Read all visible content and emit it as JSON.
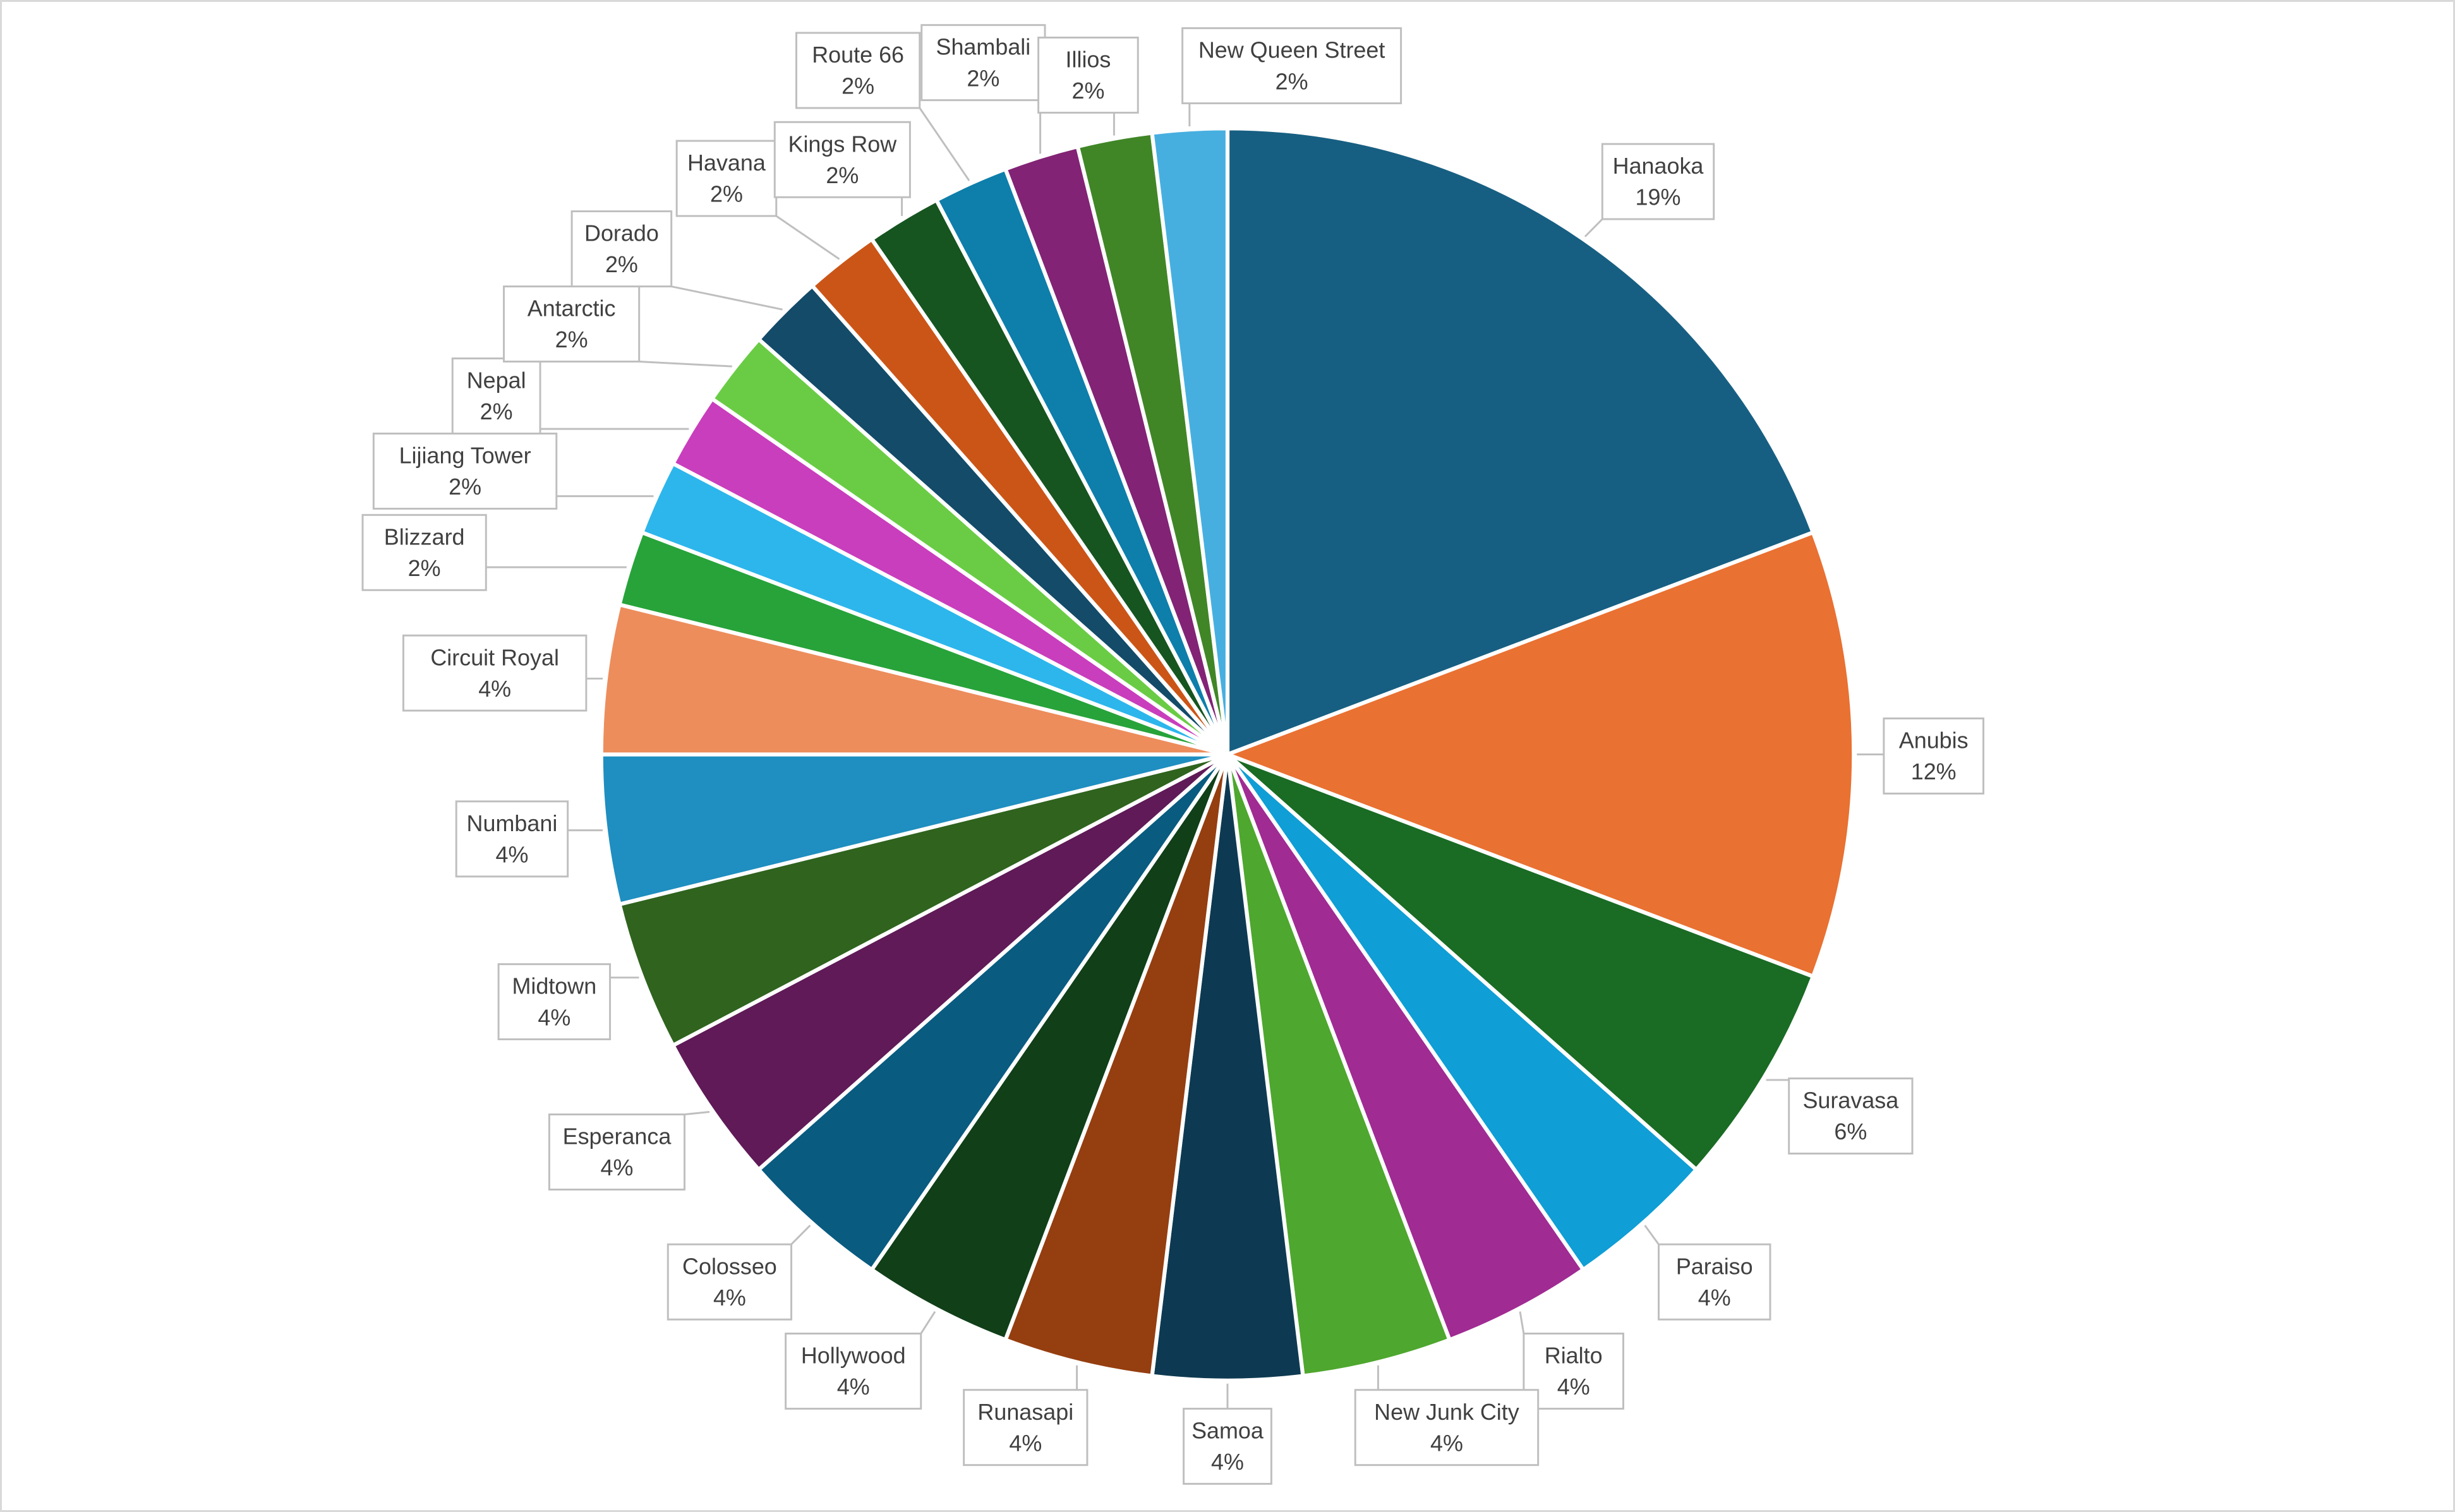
{
  "chart_data": {
    "type": "pie",
    "title": "",
    "start_angle_deg": 0,
    "direction": "clockwise",
    "legend": "none",
    "slices": [
      {
        "label": "Hanaoka",
        "value": 10,
        "pct_label": "19%",
        "color": "#175f82"
      },
      {
        "label": "Anubis",
        "value": 6,
        "pct_label": "12%",
        "color": "#e97132"
      },
      {
        "label": "Suravasa",
        "value": 3,
        "pct_label": "6%",
        "color": "#1a6b24"
      },
      {
        "label": "Paraiso",
        "value": 2,
        "pct_label": "4%",
        "color": "#0f9ed5"
      },
      {
        "label": "Rialto",
        "value": 2,
        "pct_label": "4%",
        "color": "#a02b93"
      },
      {
        "label": "New Junk City",
        "value": 2,
        "pct_label": "4%",
        "color": "#4ea72e"
      },
      {
        "label": "Samoa",
        "value": 2,
        "pct_label": "4%",
        "color": "#0d3a52"
      },
      {
        "label": "Runasapi",
        "value": 2,
        "pct_label": "4%",
        "color": "#953e10"
      },
      {
        "label": "Hollywood",
        "value": 2,
        "pct_label": "4%",
        "color": "#103f18"
      },
      {
        "label": "Colosseo",
        "value": 2,
        "pct_label": "4%",
        "color": "#095b80"
      },
      {
        "label": "Esperanca",
        "value": 2,
        "pct_label": "4%",
        "color": "#5f1a57"
      },
      {
        "label": "Midtown",
        "value": 2,
        "pct_label": "4%",
        "color": "#2f631e"
      },
      {
        "label": "Numbani",
        "value": 2,
        "pct_label": "4%",
        "color": "#1f8ec0"
      },
      {
        "label": "Circuit Royal",
        "value": 2,
        "pct_label": "4%",
        "color": "#ed8d5c"
      },
      {
        "label": "Blizzard",
        "value": 1,
        "pct_label": "2%",
        "color": "#27a33a"
      },
      {
        "label": "Lijiang Tower",
        "value": 1,
        "pct_label": "2%",
        "color": "#2db6ec"
      },
      {
        "label": "Nepal",
        "value": 1,
        "pct_label": "2%",
        "color": "#c93ebc"
      },
      {
        "label": "Antarctic",
        "value": 1,
        "pct_label": "2%",
        "color": "#6acc45"
      },
      {
        "label": "Dorado",
        "value": 1,
        "pct_label": "2%",
        "color": "#134b69"
      },
      {
        "label": "Havana",
        "value": 1,
        "pct_label": "2%",
        "color": "#cb5517"
      },
      {
        "label": "Kings Row",
        "value": 1,
        "pct_label": "2%",
        "color": "#165520"
      },
      {
        "label": "Route 66",
        "value": 1,
        "pct_label": "2%",
        "color": "#0e7eab"
      },
      {
        "label": "Shambali",
        "value": 1,
        "pct_label": "2%",
        "color": "#822375"
      },
      {
        "label": "Illios",
        "value": 1,
        "pct_label": "2%",
        "color": "#408627"
      },
      {
        "label": "New Queen Street",
        "value": 1,
        "pct_label": "2%",
        "color": "#47afe0"
      }
    ]
  }
}
